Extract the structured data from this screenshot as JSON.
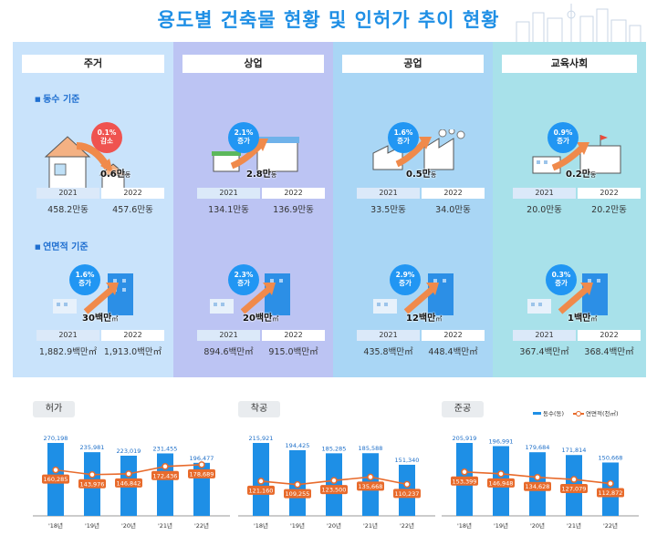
{
  "title": "용도별 건축물 현황 및 인허가 추이 현황",
  "categories": [
    {
      "name": "주거",
      "count": {
        "change": "0.1%",
        "dir": "감소",
        "amount": "0.6만",
        "unit": "동",
        "y2021": "458.2만동",
        "y2022": "457.6만동"
      },
      "area": {
        "change": "1.6%",
        "dir": "증가",
        "amount": "30백만",
        "unit": "㎡",
        "y2021": "1,882.9백만㎡",
        "y2022": "1,913.0백만㎡"
      }
    },
    {
      "name": "상업",
      "count": {
        "change": "2.1%",
        "dir": "증가",
        "amount": "2.8만",
        "unit": "동",
        "y2021": "134.1만동",
        "y2022": "136.9만동"
      },
      "area": {
        "change": "2.3%",
        "dir": "증가",
        "amount": "20백만",
        "unit": "㎡",
        "y2021": "894.6백만㎡",
        "y2022": "915.0백만㎡"
      }
    },
    {
      "name": "공업",
      "count": {
        "change": "1.6%",
        "dir": "증가",
        "amount": "0.5만",
        "unit": "동",
        "y2021": "33.5만동",
        "y2022": "34.0만동"
      },
      "area": {
        "change": "2.9%",
        "dir": "증가",
        "amount": "12백만",
        "unit": "㎡",
        "y2021": "435.8백만㎡",
        "y2022": "448.4백만㎡"
      }
    },
    {
      "name": "교육사회",
      "count": {
        "change": "0.9%",
        "dir": "증가",
        "amount": "0.2만",
        "unit": "동",
        "y2021": "20.0만동",
        "y2022": "20.2만동"
      },
      "area": {
        "change": "0.3%",
        "dir": "증가",
        "amount": "1백만",
        "unit": "㎡",
        "y2021": "367.4백만㎡",
        "y2022": "368.4백만㎡"
      }
    }
  ],
  "labels": {
    "count_basis": "동수 기준",
    "area_basis": "연면적 기준",
    "year1": "2021",
    "year2": "2022"
  },
  "legend": {
    "bar": "동수(동)",
    "line": "연면적(천㎡)"
  },
  "colors": {
    "bar": "#1e8fe6",
    "line": "#e86b2c"
  },
  "chart_data": [
    {
      "type": "bar",
      "title": "허가",
      "categories": [
        "'18년",
        "'19년",
        "'20년",
        "'21년",
        "'22년"
      ],
      "series": [
        {
          "name": "동수(동)",
          "values": [
            270198,
            235981,
            223019,
            231455,
            196477
          ]
        },
        {
          "name": "연면적(천㎡)",
          "type": "line",
          "values": [
            160285,
            143976,
            146842,
            172436,
            178689
          ]
        }
      ],
      "bar_labels": [
        "270,198",
        "235,981",
        "223,019",
        "231,455",
        "196,477"
      ],
      "line_labels": [
        "160,285",
        "143,976",
        "146,842",
        "172,436",
        "178,689"
      ]
    },
    {
      "type": "bar",
      "title": "착공",
      "categories": [
        "'18년",
        "'19년",
        "'20년",
        "'21년",
        "'22년"
      ],
      "series": [
        {
          "name": "동수(동)",
          "values": [
            215921,
            194425,
            185285,
            185588,
            151340
          ]
        },
        {
          "name": "연면적(천㎡)",
          "type": "line",
          "values": [
            121160,
            109255,
            123500,
            135668,
            110237
          ]
        }
      ],
      "bar_labels": [
        "215,921",
        "194,425",
        "185,285",
        "185,588",
        "151,340"
      ],
      "line_labels": [
        "121,160",
        "109,255",
        "123,500",
        "135,668",
        "110,237"
      ]
    },
    {
      "type": "bar",
      "title": "준공",
      "categories": [
        "'18년",
        "'19년",
        "'20년",
        "'21년",
        "'22년"
      ],
      "series": [
        {
          "name": "동수(동)",
          "values": [
            205919,
            196991,
            179684,
            171814,
            150668
          ]
        },
        {
          "name": "연면적(천㎡)",
          "type": "line",
          "values": [
            153399,
            146948,
            134628,
            127079,
            112872
          ]
        }
      ],
      "bar_labels": [
        "205,919",
        "196,991",
        "179,684",
        "171,814",
        "150,668"
      ],
      "line_labels": [
        "153,399",
        "146,948",
        "134,628",
        "127,079",
        "112,872"
      ]
    }
  ]
}
